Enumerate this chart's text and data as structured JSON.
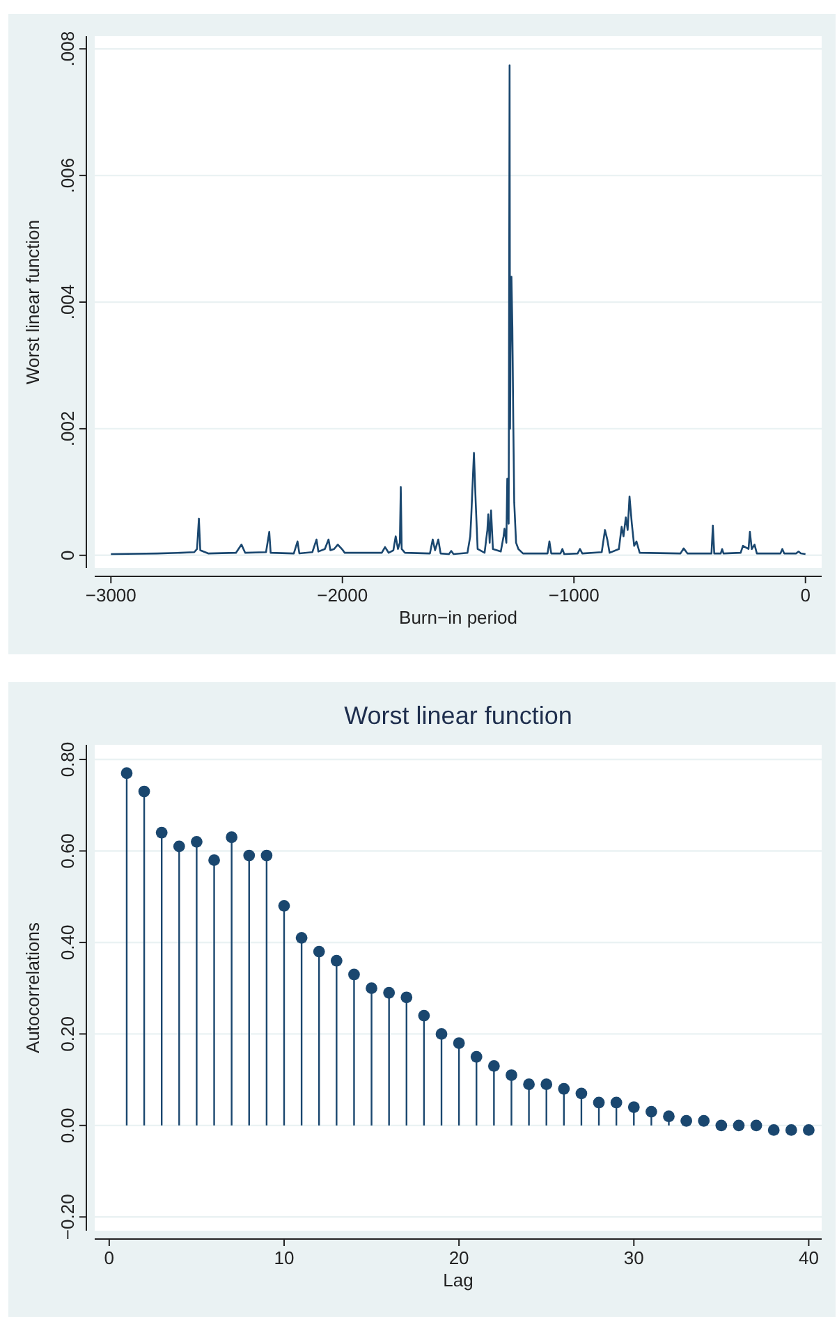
{
  "chart_data": [
    {
      "type": "line",
      "xlabel": "Burn−in period",
      "ylabel": "Worst linear function",
      "xlim": [
        -3070,
        70
      ],
      "ylim": [
        -0.0002,
        0.0082
      ],
      "xticks": [
        {
          "value": -3000,
          "label": "−3000"
        },
        {
          "value": -2000,
          "label": "−2000"
        },
        {
          "value": -1000,
          "label": "−1000"
        },
        0
      ],
      "yticks": [
        0,
        {
          "value": 0.002,
          "label": ".002"
        },
        {
          "value": 0.004,
          "label": ".004"
        },
        {
          "value": 0.006,
          "label": ".006"
        },
        {
          "value": 0.008,
          "label": ".008"
        }
      ],
      "grid": "y",
      "series": [
        {
          "color": "#1a476f",
          "x": [
            -3000,
            -2800,
            -2700,
            -2640,
            -2628,
            -2620,
            -2614,
            -2580,
            -2460,
            -2436,
            -2420,
            -2330,
            -2316,
            -2310,
            -2210,
            -2194,
            -2186,
            -2130,
            -2112,
            -2104,
            -2076,
            -2060,
            -2052,
            -2036,
            -2020,
            -2000,
            -1990,
            -1830,
            -1816,
            -1800,
            -1780,
            -1770,
            -1760,
            -1752,
            -1748,
            -1744,
            -1730,
            -1622,
            -1610,
            -1600,
            -1586,
            -1576,
            -1540,
            -1530,
            -1520,
            -1460,
            -1448,
            -1444,
            -1432,
            -1424,
            -1416,
            -1386,
            -1374,
            -1370,
            -1364,
            -1358,
            -1350,
            -1316,
            -1304,
            -1300,
            -1292,
            -1288,
            -1282,
            -1278,
            -1276,
            -1274,
            -1270,
            -1266,
            -1262,
            -1258,
            -1250,
            -1240,
            -1220,
            -1114,
            -1106,
            -1098,
            -1058,
            -1050,
            -1042,
            -984,
            -974,
            -964,
            -880,
            -866,
            -856,
            -846,
            -806,
            -794,
            -786,
            -776,
            -768,
            -760,
            -750,
            -740,
            -730,
            -716,
            -540,
            -526,
            -510,
            -406,
            -400,
            -394,
            -366,
            -360,
            -354,
            -280,
            -270,
            -246,
            -240,
            -232,
            -220,
            -210,
            -108,
            -100,
            -92,
            -40,
            -30,
            -20,
            0
          ],
          "values": [
            2e-05,
            3e-05,
            4e-05,
            5e-05,
            0.0001,
            0.00058,
            8e-05,
            3e-05,
            4e-05,
            0.00017,
            4e-05,
            5e-05,
            0.00037,
            4e-05,
            3e-05,
            0.00022,
            3e-05,
            5e-05,
            0.00025,
            6e-05,
            0.0001,
            0.00025,
            8e-05,
            0.0001,
            0.00017,
            9e-05,
            4e-05,
            4e-05,
            0.00013,
            4e-05,
            8e-05,
            0.0003,
            0.0001,
            0.0002,
            0.00108,
            0.0001,
            4e-05,
            3e-05,
            0.00025,
            8e-05,
            0.00025,
            3e-05,
            2e-05,
            7e-05,
            2e-05,
            4e-05,
            0.0003,
            0.00058,
            0.00162,
            0.0008,
            0.0001,
            4e-05,
            0.0004,
            0.00065,
            0.0002,
            0.00071,
            0.0001,
            6e-05,
            0.0003,
            0.00042,
            0.0002,
            0.00121,
            0.0005,
            0.00774,
            0.002,
            0.0032,
            0.0044,
            0.0036,
            0.0021,
            0.00084,
            0.0002,
            0.0001,
            3e-05,
            3e-05,
            0.00022,
            3e-05,
            3e-05,
            0.0001,
            2e-05,
            3e-05,
            0.0001,
            3e-05,
            5e-05,
            0.0004,
            0.00025,
            4e-05,
            0.0001,
            0.00045,
            0.0003,
            0.0006,
            0.0004,
            0.00093,
            0.0005,
            0.00015,
            0.00022,
            4e-05,
            3e-05,
            0.00011,
            3e-05,
            3e-05,
            0.00047,
            3e-05,
            3e-05,
            0.0001,
            3e-05,
            4e-05,
            0.00015,
            0.0001,
            0.00037,
            0.0001,
            0.00017,
            3e-05,
            3e-05,
            0.0001,
            3e-05,
            3e-05,
            6e-05,
            3e-05,
            2e-05
          ]
        }
      ]
    },
    {
      "type": "lollipop",
      "title": "Worst linear function",
      "xlabel": "Lag",
      "ylabel": "Autocorrelations",
      "xlim": [
        -0.83,
        40.74
      ],
      "ylim": [
        -0.23,
        0.832
      ],
      "xticks": [
        0,
        10,
        20,
        30,
        40
      ],
      "yticks": [
        {
          "value": -0.2,
          "label": "−0.20"
        },
        {
          "value": 0,
          "label": "0.00"
        },
        {
          "value": 0.2,
          "label": "0.20"
        },
        {
          "value": 0.4,
          "label": "0.40"
        },
        {
          "value": 0.6,
          "label": "0.60"
        },
        {
          "value": 0.8,
          "label": "0.80"
        }
      ],
      "grid": "y",
      "marker": "circle",
      "x": [
        1,
        2,
        3,
        4,
        5,
        6,
        7,
        8,
        9,
        10,
        11,
        12,
        13,
        14,
        15,
        16,
        17,
        18,
        19,
        20,
        21,
        22,
        23,
        24,
        25,
        26,
        27,
        28,
        29,
        30,
        31,
        32,
        33,
        34,
        35,
        36,
        37,
        38,
        39,
        40
      ],
      "series": [
        {
          "color": "#1a476f",
          "values": [
            0.77,
            0.73,
            0.64,
            0.61,
            0.62,
            0.58,
            0.63,
            0.59,
            0.59,
            0.48,
            0.41,
            0.38,
            0.36,
            0.33,
            0.3,
            0.29,
            0.28,
            0.24,
            0.2,
            0.18,
            0.15,
            0.13,
            0.11,
            0.09,
            0.09,
            0.08,
            0.07,
            0.05,
            0.05,
            0.04,
            0.03,
            0.02,
            0.01,
            0.01,
            0.0,
            0.0,
            0.0,
            -0.01,
            -0.01,
            -0.01
          ]
        }
      ]
    }
  ]
}
